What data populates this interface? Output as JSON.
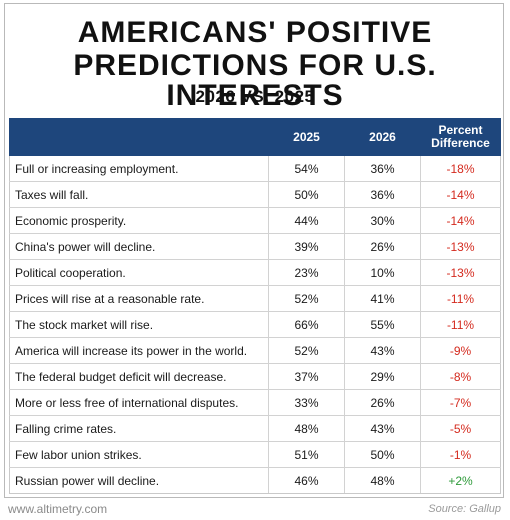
{
  "header": {
    "title_line1": "AMERICANS' POSITIVE",
    "title_line2": "PREDICTIONS FOR U.S. INTERESTS",
    "subtitle": "2026 VS. 2025"
  },
  "footer": {
    "website": "www.altimetry.com",
    "source": "Source: Gallup"
  },
  "chart_data": {
    "type": "table",
    "columns": [
      "",
      "2025",
      "2026",
      "Percent Difference"
    ],
    "rows": [
      {
        "label": "Full or increasing employment.",
        "y2025": "54%",
        "y2026": "36%",
        "diff": "-18%",
        "sign": "neg"
      },
      {
        "label": "Taxes will fall.",
        "y2025": "50%",
        "y2026": "36%",
        "diff": "-14%",
        "sign": "neg"
      },
      {
        "label": "Economic prosperity.",
        "y2025": "44%",
        "y2026": "30%",
        "diff": "-14%",
        "sign": "neg"
      },
      {
        "label": "China's power will decline.",
        "y2025": "39%",
        "y2026": "26%",
        "diff": "-13%",
        "sign": "neg"
      },
      {
        "label": "Political cooperation.",
        "y2025": "23%",
        "y2026": "10%",
        "diff": "-13%",
        "sign": "neg"
      },
      {
        "label": "Prices will rise at a reasonable rate.",
        "y2025": "52%",
        "y2026": "41%",
        "diff": "-11%",
        "sign": "neg"
      },
      {
        "label": "The stock market will rise.",
        "y2025": "66%",
        "y2026": "55%",
        "diff": "-11%",
        "sign": "neg"
      },
      {
        "label": "America will increase its power in the world.",
        "y2025": "52%",
        "y2026": "43%",
        "diff": "-9%",
        "sign": "neg"
      },
      {
        "label": "The federal budget deficit will decrease.",
        "y2025": "37%",
        "y2026": "29%",
        "diff": "-8%",
        "sign": "neg"
      },
      {
        "label": "More or less free of international disputes.",
        "y2025": "33%",
        "y2026": "26%",
        "diff": "-7%",
        "sign": "neg"
      },
      {
        "label": "Falling crime rates.",
        "y2025": "48%",
        "y2026": "43%",
        "diff": "-5%",
        "sign": "neg"
      },
      {
        "label": "Few labor union strikes.",
        "y2025": "51%",
        "y2026": "50%",
        "diff": "-1%",
        "sign": "neg"
      },
      {
        "label": "Russian power will decline.",
        "y2025": "46%",
        "y2026": "48%",
        "diff": "+2%",
        "sign": "pos"
      }
    ],
    "colors": {
      "header_bg": "#1e467c",
      "negative": "#d42a1e",
      "positive": "#2e9a3a"
    }
  }
}
